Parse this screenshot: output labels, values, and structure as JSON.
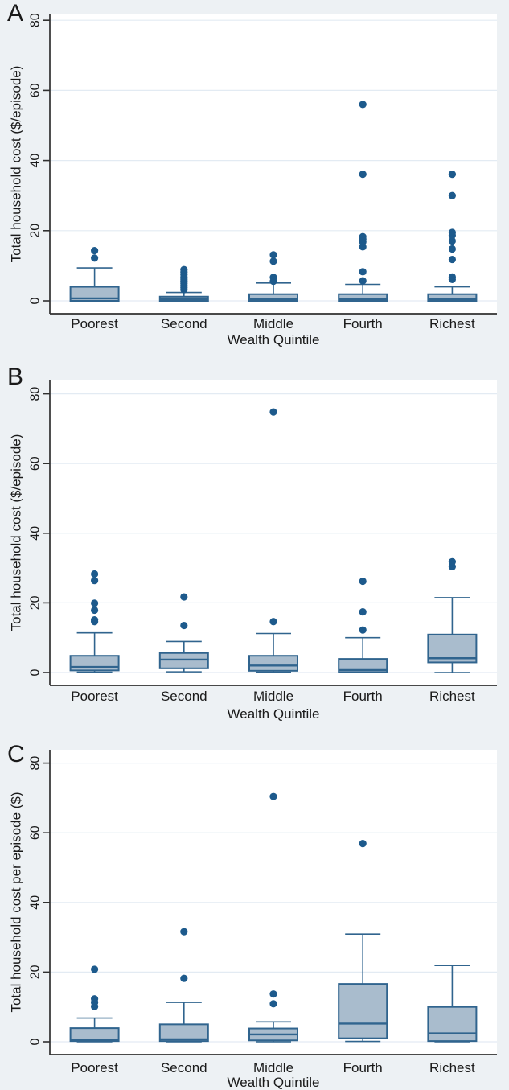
{
  "style": {
    "background": "#edf1f4",
    "plot_background": "#ffffff",
    "grid_color": "#e3ebf3",
    "box_fill": "#a9bccd",
    "box_stroke": "#30648e",
    "outlier_color": "#1d5a8c",
    "axis_color": "#303030",
    "text_color": "#1a1a1a"
  },
  "chart_data": [
    {
      "type": "box",
      "panel_label": "A",
      "ylabel": "Total household cost ($/episode)",
      "xlabel": "Wealth Quintile",
      "ylim": [
        0,
        80
      ],
      "y_ticks": [
        0,
        20,
        40,
        60,
        80
      ],
      "grid": true,
      "categories": [
        "Poorest",
        "Second",
        "Middle",
        "Fourth",
        "Richest"
      ],
      "boxes": [
        {
          "category": "Poorest",
          "whisker_low": 0,
          "q1": 0,
          "median": 0.7,
          "q3": 4.0,
          "whisker_high": 9.4,
          "outliers": [
            12.2,
            14.3
          ]
        },
        {
          "category": "Second",
          "whisker_low": 0,
          "q1": 0,
          "median": 0.5,
          "q3": 1.2,
          "whisker_high": 2.4,
          "outliers": [
            3.2,
            3.8,
            4.4,
            5.0,
            5.6,
            6.2,
            6.8,
            7.5,
            8.2,
            8.9
          ]
        },
        {
          "category": "Middle",
          "whisker_low": 0,
          "q1": 0,
          "median": 0.4,
          "q3": 1.9,
          "whisker_high": 5.1,
          "outliers": [
            5.6,
            6.7,
            11.3,
            13.1
          ]
        },
        {
          "category": "Fourth",
          "whisker_low": 0,
          "q1": 0,
          "median": 0.4,
          "q3": 1.9,
          "whisker_high": 4.7,
          "outliers": [
            5.7,
            8.3,
            15.4,
            16.8,
            17.6,
            18.3,
            36.1,
            56.0
          ]
        },
        {
          "category": "Richest",
          "whisker_low": 0,
          "q1": 0,
          "median": 0.4,
          "q3": 1.9,
          "whisker_high": 4.0,
          "outliers": [
            6.1,
            6.8,
            11.8,
            14.8,
            17.1,
            18.7,
            19.5,
            30.0,
            36.1
          ]
        }
      ]
    },
    {
      "type": "box",
      "panel_label": "B",
      "ylabel": "Total household cost ($/episode)",
      "xlabel": "Wealth Quintile",
      "ylim": [
        0,
        80
      ],
      "y_ticks": [
        0,
        20,
        40,
        60,
        80
      ],
      "grid": true,
      "categories": [
        "Poorest",
        "Second",
        "Middle",
        "Fourth",
        "Richest"
      ],
      "boxes": [
        {
          "category": "Poorest",
          "whisker_low": 0.1,
          "q1": 0.6,
          "median": 1.6,
          "q3": 4.8,
          "whisker_high": 11.4,
          "outliers": [
            14.6,
            15.1,
            17.9,
            19.9,
            26.4,
            28.3
          ]
        },
        {
          "category": "Second",
          "whisker_low": 0.2,
          "q1": 1.2,
          "median": 3.7,
          "q3": 5.6,
          "whisker_high": 8.9,
          "outliers": [
            13.5,
            21.7
          ]
        },
        {
          "category": "Middle",
          "whisker_low": 0.1,
          "q1": 0.5,
          "median": 2.0,
          "q3": 4.8,
          "whisker_high": 11.2,
          "outliers": [
            14.6,
            74.8
          ]
        },
        {
          "category": "Fourth",
          "whisker_low": 0,
          "q1": 0.1,
          "median": 0.7,
          "q3": 3.9,
          "whisker_high": 10.0,
          "outliers": [
            12.2,
            17.4,
            26.2
          ]
        },
        {
          "category": "Richest",
          "whisker_low": 0,
          "q1": 2.9,
          "median": 4.1,
          "q3": 10.9,
          "whisker_high": 21.5,
          "outliers": [
            30.4,
            31.8
          ]
        }
      ]
    },
    {
      "type": "box",
      "panel_label": "C",
      "ylabel": "Total household cost per episode ($)",
      "xlabel": "Wealth Quintile",
      "ylim": [
        0,
        80
      ],
      "y_ticks": [
        0,
        20,
        40,
        60,
        80
      ],
      "grid": true,
      "categories": [
        "Poorest",
        "Second",
        "Middle",
        "Fourth",
        "Richest"
      ],
      "boxes": [
        {
          "category": "Poorest",
          "whisker_low": 0,
          "q1": 0.2,
          "median": 0.6,
          "q3": 3.9,
          "whisker_high": 6.8,
          "outliers": [
            10.1,
            11.3,
            12.3,
            20.8
          ]
        },
        {
          "category": "Second",
          "whisker_low": 0,
          "q1": 0.2,
          "median": 0.7,
          "q3": 5.0,
          "whisker_high": 11.3,
          "outliers": [
            18.2,
            31.6
          ]
        },
        {
          "category": "Middle",
          "whisker_low": 0,
          "q1": 0.4,
          "median": 2.1,
          "q3": 3.8,
          "whisker_high": 5.7,
          "outliers": [
            10.9,
            13.7,
            70.4
          ]
        },
        {
          "category": "Fourth",
          "whisker_low": 0.1,
          "q1": 1.0,
          "median": 5.2,
          "q3": 16.6,
          "whisker_high": 30.9,
          "outliers": [
            56.9
          ]
        },
        {
          "category": "Richest",
          "whisker_low": 0,
          "q1": 0.2,
          "median": 2.4,
          "q3": 10.0,
          "whisker_high": 21.9,
          "outliers": []
        }
      ]
    }
  ]
}
